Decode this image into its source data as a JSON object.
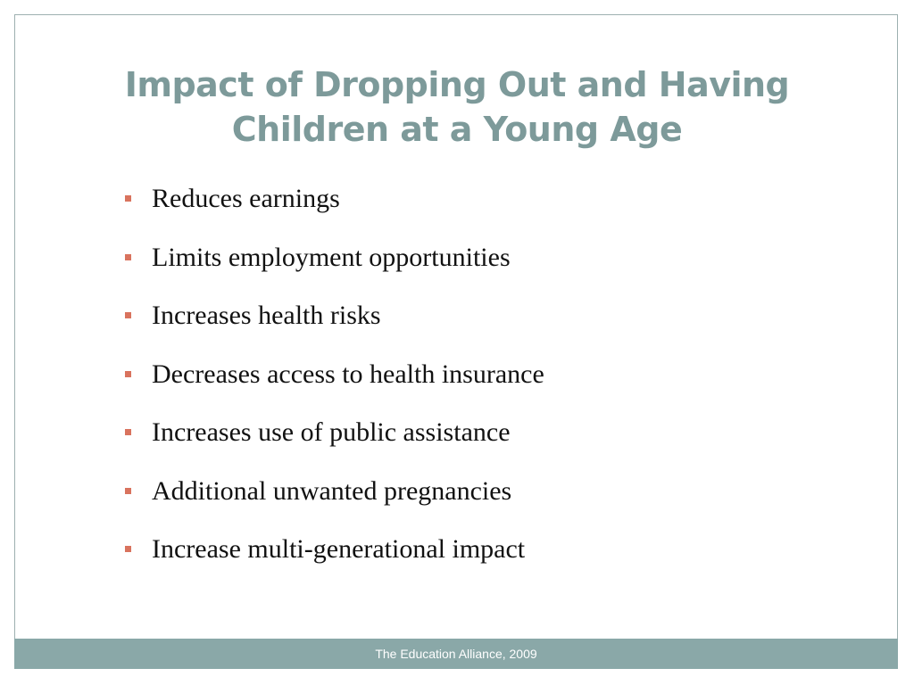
{
  "slide": {
    "title_line1": "Impact of Dropping Out and Having",
    "title_line2": "Children at a Young Age",
    "bullets": [
      "Reduces earnings",
      "Limits employment opportunities",
      "Increases health risks",
      "Decreases access to health insurance",
      "Increases use of public assistance",
      "Additional unwanted pregnancies",
      "Increase multi-generational impact"
    ],
    "footer": "The Education Alliance, 2009"
  },
  "colors": {
    "title": "#7d9a9a",
    "bullet_marker": "#d9735e",
    "footer_bar": "#8aa8a8",
    "border": "#9db0b0"
  }
}
